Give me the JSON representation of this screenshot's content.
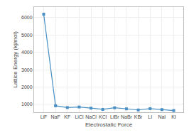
{
  "chart_data": {
    "type": "line",
    "xlabel": "Electrostatic Force",
    "ylabel": "Lattice Energy (kj/mol)",
    "categories": [
      "LiF",
      "NaF",
      "KF",
      "LiCl",
      "NaCl",
      "KCl",
      "LiBr",
      "NaBr",
      "KBr",
      "LI",
      "NaI",
      "KI"
    ],
    "values": [
      6195,
      923,
      821,
      853,
      787,
      715,
      807,
      747,
      682,
      757,
      704,
      649
    ],
    "color": "#4A90C4",
    "marker": "square",
    "ylim": [
      550,
      6600
    ],
    "yticks": [
      1000,
      2000,
      3000,
      4000,
      5000,
      6000
    ],
    "grid": true
  }
}
